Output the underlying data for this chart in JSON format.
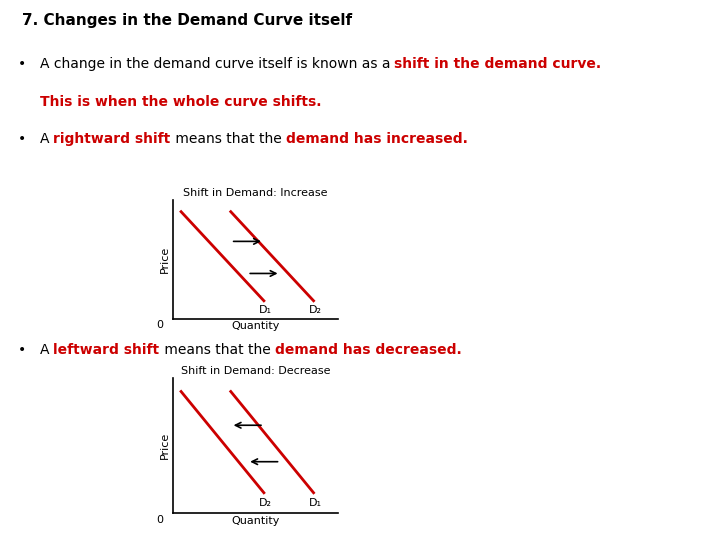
{
  "title": "7. Changes in the Demand Curve itself",
  "bullet1_part1": "A change in the demand curve itself is known as a ",
  "bullet1_part2": "shift in the demand curve.",
  "bullet1_line2": "This is when the whole curve shifts.",
  "bullet2_part1": "A ",
  "bullet2_part2": "rightward shift",
  "bullet2_part3": " means that the ",
  "bullet2_part4": "demand has increased.",
  "bullet3_part1": "A ",
  "bullet3_part2": "leftward shift",
  "bullet3_part3": " means that the ",
  "bullet3_part4": "demand has decreased.",
  "graph1_title": "Shift in Demand: Increase",
  "graph2_title": "Shift in Demand: Decrease",
  "D1_label": "D₁",
  "D2_label": "D₂",
  "xlabel": "Quantity",
  "ylabel": "Price",
  "curve_color": "#cc0000",
  "arrow_color": "#000000",
  "text_color": "#000000",
  "red_color": "#cc0000",
  "background": "#ffffff",
  "title_fontsize": 11,
  "body_fontsize": 10,
  "graph_title_fontsize": 8,
  "graph_label_fontsize": 8
}
